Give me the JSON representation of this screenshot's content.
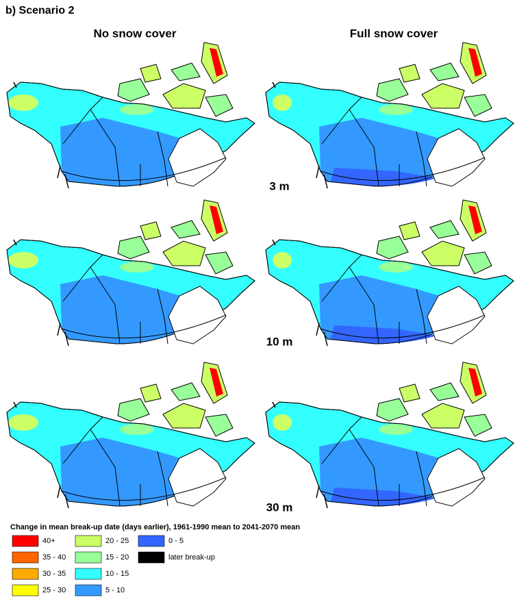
{
  "title": "b) Scenario 2",
  "columns": [
    "No snow cover",
    "Full snow cover"
  ],
  "rows": [
    "3 m",
    "10 m",
    "30 m"
  ],
  "legend": {
    "title": "Change in mean break-up date (days earlier), 1961-1990 mean to 2041-2070 mean",
    "items": [
      {
        "label": "40+",
        "color": "#ff0000"
      },
      {
        "label": "35 - 40",
        "color": "#ff6600"
      },
      {
        "label": "30 - 35",
        "color": "#ffaa00"
      },
      {
        "label": "25 - 30",
        "color": "#ffff00"
      },
      {
        "label": "20 - 25",
        "color": "#ccff66"
      },
      {
        "label": "15 - 20",
        "color": "#99ff99"
      },
      {
        "label": "10 - 15",
        "color": "#33ffff"
      },
      {
        "label": "5 - 10",
        "color": "#3399ff"
      },
      {
        "label": "0 - 5",
        "color": "#3366ff"
      },
      {
        "label": "later break-up",
        "color": "#000000"
      }
    ]
  }
}
